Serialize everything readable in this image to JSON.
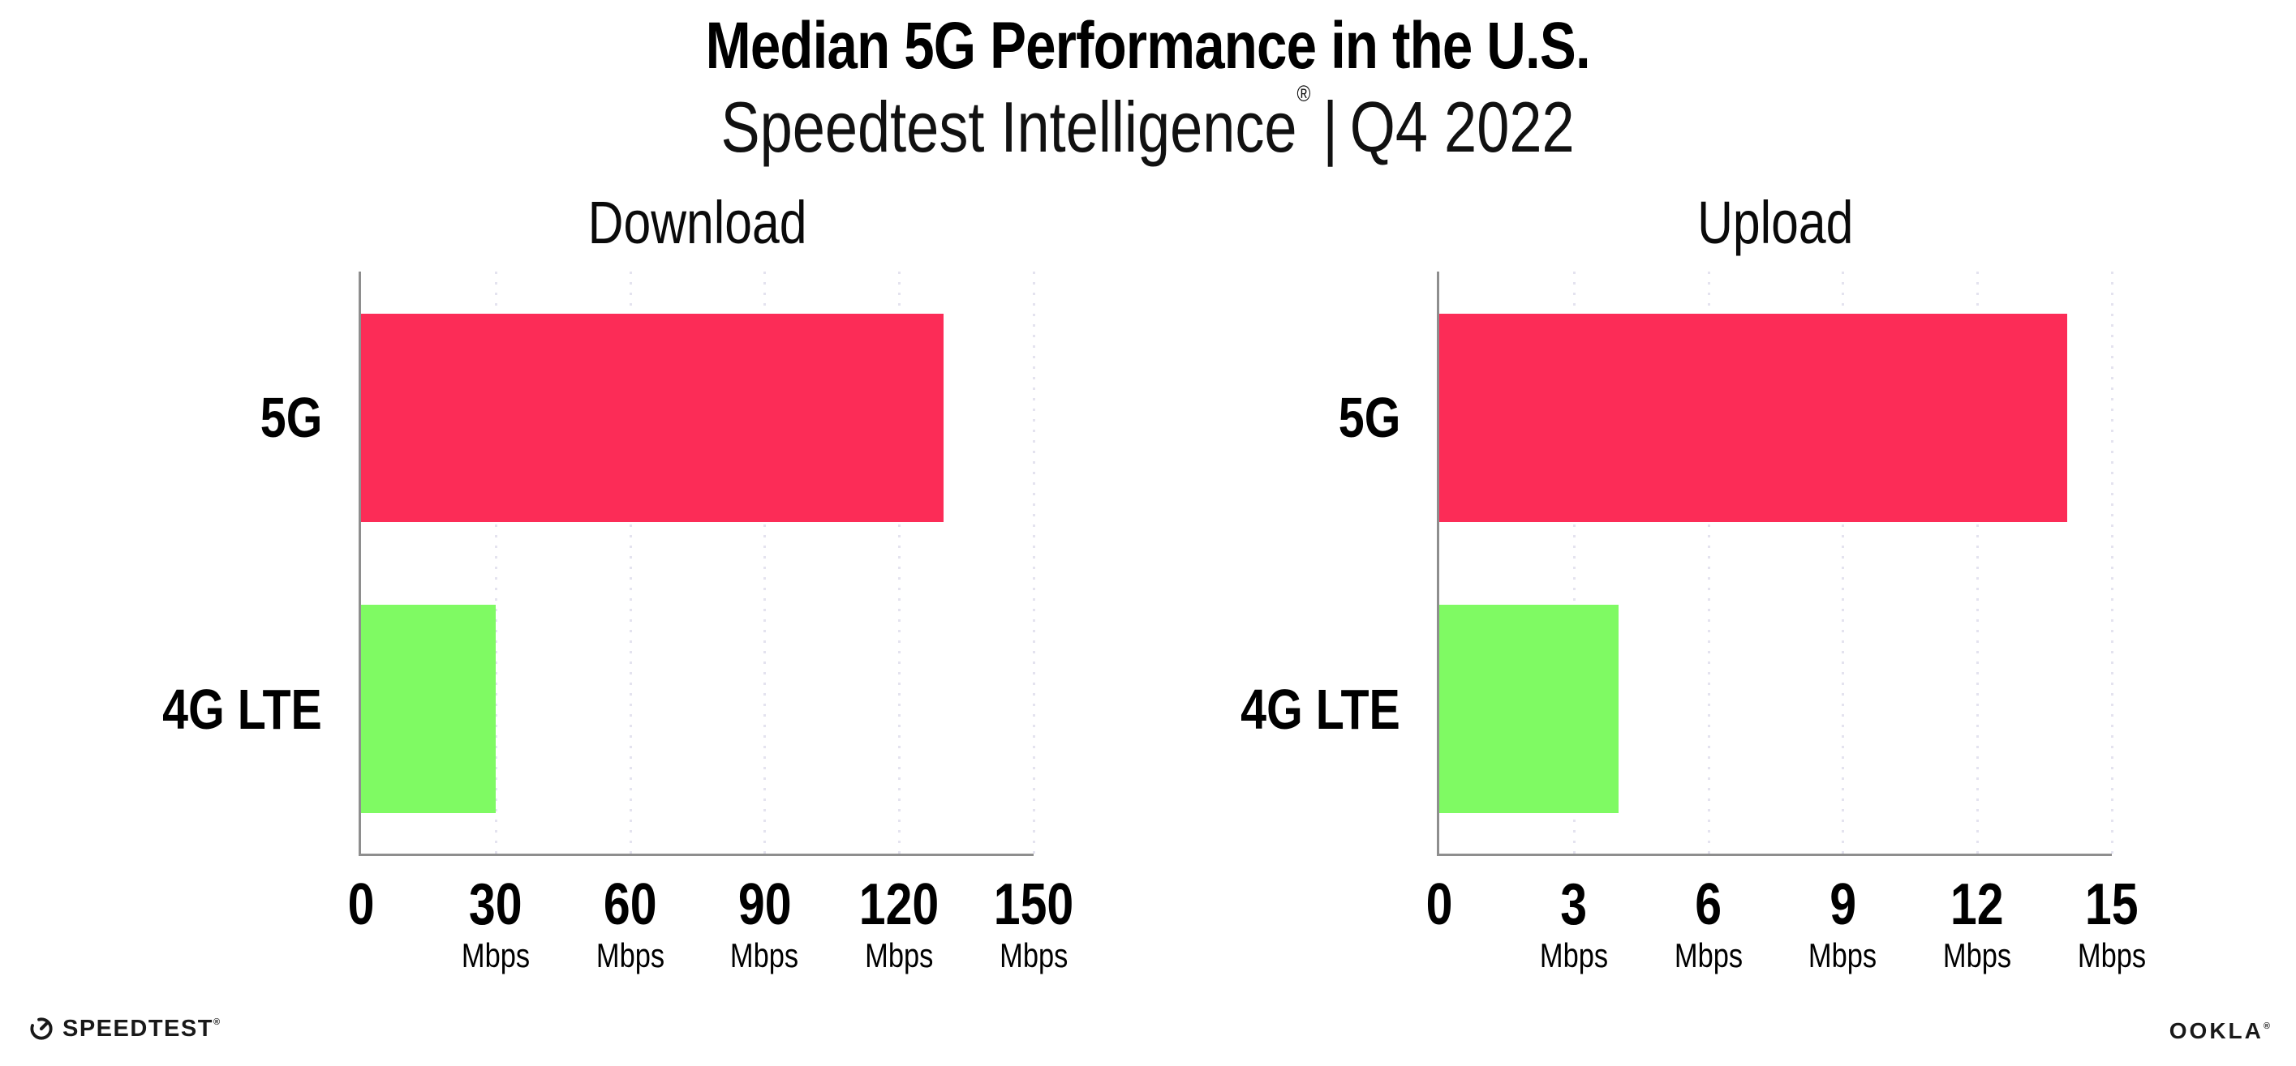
{
  "header": {
    "title": "Median 5G Performance in the U.S.",
    "subtitle_brand": "Speedtest Intelligence",
    "subtitle_registered_mark": "®",
    "subtitle_separator": "|",
    "subtitle_period": "Q4 2022"
  },
  "colors": {
    "bar_5g": "#FC2C57",
    "bar_4g_lte": "#7FFA63",
    "gridline": "#E4E3EF",
    "axis": "#8E8E8E",
    "text": "#000000"
  },
  "chart_data": [
    {
      "type": "bar",
      "orientation": "horizontal",
      "title": "Download",
      "categories": [
        "5G",
        "4G LTE"
      ],
      "values": [
        130,
        30
      ],
      "unit": "Mbps",
      "xlim": [
        0,
        150
      ],
      "xticks": [
        0,
        30,
        60,
        90,
        120,
        150
      ],
      "tick_unit_label": "Mbps",
      "grid": "vertical-dotted",
      "legend": "none",
      "bar_colors": [
        "#FC2C57",
        "#7FFA63"
      ]
    },
    {
      "type": "bar",
      "orientation": "horizontal",
      "title": "Upload",
      "categories": [
        "5G",
        "4G LTE"
      ],
      "values": [
        14,
        4
      ],
      "unit": "Mbps",
      "xlim": [
        0,
        15
      ],
      "xticks": [
        0,
        3,
        6,
        9,
        12,
        15
      ],
      "tick_unit_label": "Mbps",
      "grid": "vertical-dotted",
      "legend": "none",
      "bar_colors": [
        "#FC2C57",
        "#7FFA63"
      ]
    }
  ],
  "footer": {
    "speedtest_logo_text": "SPEEDTEST",
    "speedtest_logo_mark": "®",
    "ookla_logo_text": "OOKLA",
    "ookla_logo_mark": "®"
  }
}
